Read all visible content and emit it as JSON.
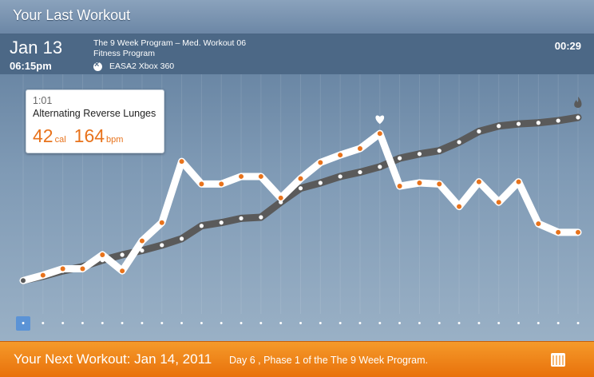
{
  "window": {
    "title": "Your Last Workout"
  },
  "session": {
    "date": "Jan 13",
    "time": "06:15pm",
    "program_line1": "The 9 Week Program – Med. Workout 06",
    "program_line2": "Fitness Program",
    "platform": "EASA2 Xbox 360",
    "elapsed": "00:29"
  },
  "tooltip": {
    "time": "1:01",
    "exercise": "Alternating Reverse Lunges",
    "calories": "42",
    "calories_unit": "cal",
    "heart_rate": "164",
    "heart_rate_unit": "bpm"
  },
  "footer": {
    "next_workout": "Your Next Workout: Jan 14, 2011",
    "detail": "Day 6 , Phase 1 of the The 9 Week Program."
  },
  "colors": {
    "accent": "#e8731c",
    "footer": "#f08a1c",
    "heart_line": "#ffffff",
    "calorie_line": "#5a5a5a"
  },
  "icons": {
    "exercise_strip": [
      "runner-icon",
      "stretch-icon",
      "squat-icon",
      "lunge-icon",
      "kick-icon",
      "sprint-icon",
      "jump-icon",
      "punch-icon",
      "ball-icon",
      "pushup-icon",
      "lunge-icon",
      "reach-icon",
      "ball-icon",
      "cycle-icon",
      "stand-icon",
      "cycle-icon",
      "punch-icon",
      "arms-up-icon",
      "ball-icon",
      "lunge-icon",
      "reach-icon",
      "ball-icon",
      "cycle-icon",
      "pushup-icon",
      "plank-icon",
      "situp-icon",
      "crunch-icon",
      "leg-raise-icon",
      "lying-icon"
    ],
    "heart_marker": "heart-icon",
    "calorie_marker": "flame-icon",
    "calendar": "calendar-icon"
  },
  "chart_data": {
    "type": "line",
    "series": [
      {
        "values": [
          5,
          10,
          16,
          16,
          29,
          14,
          42,
          59,
          116,
          95,
          95,
          102,
          102,
          82,
          100,
          115,
          122,
          128,
          142,
          93,
          96,
          95,
          74,
          97,
          78,
          97,
          58,
          50,
          50
        ]
      },
      {
        "values": [
          5,
          9,
          14,
          18,
          24,
          29,
          33,
          38,
          44,
          56,
          59,
          63,
          64,
          78,
          91,
          96,
          102,
          106,
          111,
          119,
          123,
          126,
          134,
          144,
          149,
          151,
          152,
          154,
          157
        ]
      }
    ],
    "ylim": [
      0,
      160
    ],
    "grid": true
  }
}
